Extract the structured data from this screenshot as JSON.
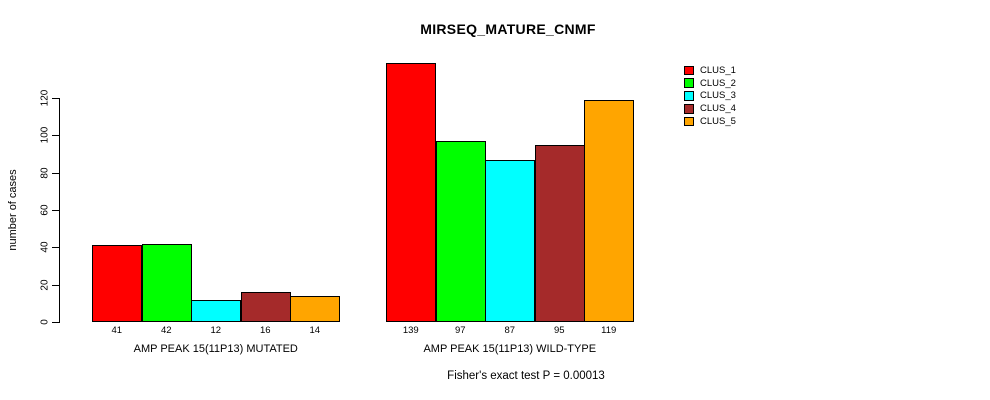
{
  "title": "MIRSEQ_MATURE_CNMF",
  "annotation": "Fisher's exact test P = 0.00013",
  "chart_data": {
    "type": "bar",
    "title": "MIRSEQ_MATURE_CNMF",
    "ylabel": "number of cases",
    "xlabel": "",
    "categories": [
      "AMP PEAK 15(11P13) MUTATED",
      "AMP PEAK 15(11P13) WILD-TYPE"
    ],
    "series": [
      {
        "name": "CLUS_1",
        "color": "#FF0000",
        "values": [
          41,
          139
        ]
      },
      {
        "name": "CLUS_2",
        "color": "#00FF00",
        "values": [
          42,
          97
        ]
      },
      {
        "name": "CLUS_3",
        "color": "#00FFFF",
        "values": [
          12,
          87
        ]
      },
      {
        "name": "CLUS_4",
        "color": "#A52A2A",
        "values": [
          16,
          95
        ]
      },
      {
        "name": "CLUS_5",
        "color": "#FFA500",
        "values": [
          14,
          119
        ]
      }
    ],
    "bar_value_labels": [
      [
        "41",
        "42",
        "12",
        "16",
        "14"
      ],
      [
        "139",
        "97",
        "87",
        "95",
        "119"
      ]
    ],
    "yticks": [
      0,
      20,
      40,
      60,
      80,
      100,
      120
    ],
    "ylim": [
      0,
      120
    ],
    "grid": false,
    "legend_position": "top-right",
    "legend_entries": [
      "CLUS_1",
      "CLUS_2",
      "CLUS_3",
      "CLUS_4",
      "CLUS_5"
    ],
    "annotation": "Fisher's exact test P = 0.00013"
  }
}
